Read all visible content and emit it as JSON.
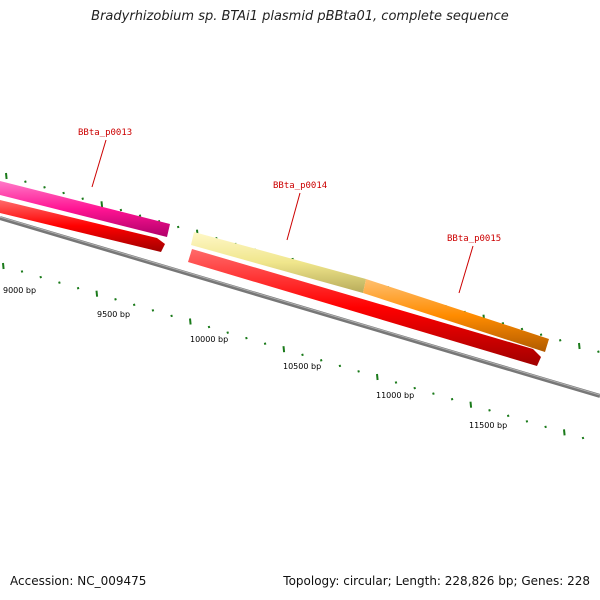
{
  "title": "Bradyrhizobium sp. BTAi1 plasmid pBBta01, complete sequence",
  "footer": {
    "accession": "Accession: NC_009475",
    "summary": "Topology: circular; Length: 228,826 bp; Genes: 228"
  },
  "map": {
    "backbone_color": "#808080",
    "tick_color": "#1a7a1a",
    "scale_labels": [
      "9000 bp",
      "9500 bp",
      "10000 bp",
      "10500 bp",
      "11000 bp",
      "11500 bp"
    ],
    "genes": [
      {
        "name": "BBta_p0013",
        "color": "#ff1493"
      },
      {
        "name": "BBta_p0014",
        "color": "#f0e68c"
      },
      {
        "name": "BBta_p0015",
        "color": "#ff8c00"
      }
    ],
    "cds_color": "#ff0000"
  }
}
